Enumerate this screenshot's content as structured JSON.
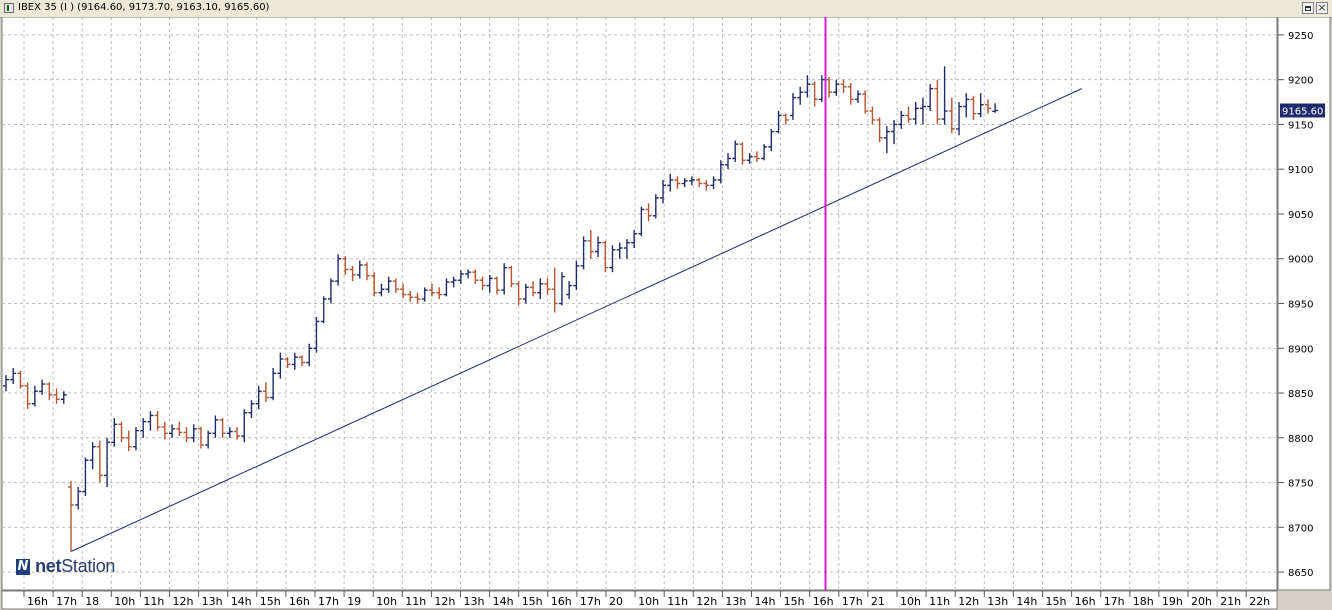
{
  "window": {
    "title": "IBEX 35 (I ) (9164.60, 9173.70, 9163.10, 9165.60)",
    "restore_icon": "restore-icon",
    "close_icon": "close-icon",
    "close_glyph": "×"
  },
  "logo": {
    "mark": "N",
    "text_bold": "net",
    "text_regular": "Station"
  },
  "chart_data": {
    "type": "ohlc",
    "title": "IBEX 35 (I )",
    "last_price_label": "9165.60",
    "last_price": 9165.6,
    "ylim": [
      8630,
      9270
    ],
    "yticks": [
      8650,
      8700,
      8750,
      8800,
      8850,
      8900,
      8950,
      9000,
      9050,
      9100,
      9150,
      9200,
      9250
    ],
    "grid": true,
    "colors": {
      "up": "#1f2a6b",
      "down": "#b5542e",
      "trendline": "#1f2a6b",
      "marker": "#d21fd2",
      "background": "#ffffff",
      "grid": "#bdbdbd",
      "price_label_bg": "#1f2a6b"
    },
    "x_labels": [
      "16h",
      "17h",
      "18",
      "10h",
      "11h",
      "12h",
      "13h",
      "14h",
      "15h",
      "16h",
      "17h",
      "19",
      "10h",
      "11h",
      "12h",
      "13h",
      "14h",
      "15h",
      "16h",
      "17h",
      "20",
      "10h",
      "11h",
      "12h",
      "13h",
      "14h",
      "15h",
      "16h",
      "17h",
      "21",
      "10h",
      "11h",
      "12h",
      "13h",
      "14h",
      "15h",
      "16h",
      "17h",
      "18h",
      "19h",
      "20h",
      "21h",
      "22h"
    ],
    "trendline": {
      "start_bar": 0,
      "start_value": 8673,
      "end_bar": 140,
      "end_value": 9190,
      "starts_at_bar": 0
    },
    "vertical_marker_after_bar": 113,
    "sessions": [
      {
        "bars": [
          {
            "o": 8858,
            "h": 8870,
            "l": 8852,
            "c": 8865
          },
          {
            "o": 8865,
            "h": 8878,
            "l": 8860,
            "c": 8872
          },
          {
            "o": 8872,
            "h": 8875,
            "l": 8855,
            "c": 8858
          },
          {
            "o": 8858,
            "h": 8862,
            "l": 8832,
            "c": 8838
          },
          {
            "o": 8838,
            "h": 8858,
            "l": 8835,
            "c": 8852
          },
          {
            "o": 8852,
            "h": 8865,
            "l": 8848,
            "c": 8860
          },
          {
            "o": 8860,
            "h": 8862,
            "l": 8842,
            "c": 8848
          },
          {
            "o": 8848,
            "h": 8855,
            "l": 8838,
            "c": 8843
          },
          {
            "o": 8843,
            "h": 8852,
            "l": 8838,
            "c": 8848
          }
        ]
      },
      {
        "bars": [
          {
            "o": 8745,
            "h": 8752,
            "l": 8673,
            "c": 8725
          },
          {
            "o": 8725,
            "h": 8745,
            "l": 8720,
            "c": 8740
          },
          {
            "o": 8740,
            "h": 8778,
            "l": 8735,
            "c": 8775
          },
          {
            "o": 8775,
            "h": 8795,
            "l": 8765,
            "c": 8790
          },
          {
            "o": 8790,
            "h": 8797,
            "l": 8750,
            "c": 8758
          },
          {
            "o": 8758,
            "h": 8800,
            "l": 8745,
            "c": 8795
          },
          {
            "o": 8795,
            "h": 8822,
            "l": 8790,
            "c": 8815
          },
          {
            "o": 8815,
            "h": 8818,
            "l": 8795,
            "c": 8800
          },
          {
            "o": 8800,
            "h": 8808,
            "l": 8785,
            "c": 8790
          },
          {
            "o": 8790,
            "h": 8812,
            "l": 8786,
            "c": 8808
          },
          {
            "o": 8808,
            "h": 8822,
            "l": 8800,
            "c": 8818
          },
          {
            "o": 8818,
            "h": 8830,
            "l": 8808,
            "c": 8825
          },
          {
            "o": 8825,
            "h": 8830,
            "l": 8808,
            "c": 8812
          },
          {
            "o": 8812,
            "h": 8818,
            "l": 8798,
            "c": 8805
          },
          {
            "o": 8805,
            "h": 8815,
            "l": 8800,
            "c": 8810
          },
          {
            "o": 8810,
            "h": 8818,
            "l": 8802,
            "c": 8806
          },
          {
            "o": 8806,
            "h": 8812,
            "l": 8795,
            "c": 8800
          },
          {
            "o": 8800,
            "h": 8815,
            "l": 8795,
            "c": 8810
          },
          {
            "o": 8810,
            "h": 8812,
            "l": 8788,
            "c": 8792
          },
          {
            "o": 8792,
            "h": 8808,
            "l": 8788,
            "c": 8805
          },
          {
            "o": 8805,
            "h": 8825,
            "l": 8800,
            "c": 8820
          },
          {
            "o": 8820,
            "h": 8822,
            "l": 8800,
            "c": 8805
          },
          {
            "o": 8805,
            "h": 8812,
            "l": 8800,
            "c": 8807
          },
          {
            "o": 8807,
            "h": 8812,
            "l": 8798,
            "c": 8802
          },
          {
            "o": 8802,
            "h": 8832,
            "l": 8795,
            "c": 8828
          },
          {
            "o": 8828,
            "h": 8842,
            "l": 8822,
            "c": 8838
          },
          {
            "o": 8838,
            "h": 8858,
            "l": 8832,
            "c": 8852
          },
          {
            "o": 8852,
            "h": 8862,
            "l": 8840,
            "c": 8845
          },
          {
            "o": 8845,
            "h": 8878,
            "l": 8842,
            "c": 8872
          },
          {
            "o": 8872,
            "h": 8895,
            "l": 8866,
            "c": 8888
          },
          {
            "o": 8888,
            "h": 8890,
            "l": 8878,
            "c": 8882
          },
          {
            "o": 8882,
            "h": 8895,
            "l": 8876,
            "c": 8890
          },
          {
            "o": 8890,
            "h": 8892,
            "l": 8880,
            "c": 8884
          },
          {
            "o": 8884,
            "h": 8905,
            "l": 8880,
            "c": 8900
          },
          {
            "o": 8900,
            "h": 8935,
            "l": 8895,
            "c": 8930
          },
          {
            "o": 8930,
            "h": 8958,
            "l": 8928,
            "c": 8955
          },
          {
            "o": 8955,
            "h": 8978,
            "l": 8950,
            "c": 8975
          },
          {
            "o": 8975,
            "h": 9005,
            "l": 8970,
            "c": 9000
          },
          {
            "o": 9000,
            "h": 9003,
            "l": 8982,
            "c": 8988
          },
          {
            "o": 8988,
            "h": 8992,
            "l": 8975,
            "c": 8982
          },
          {
            "o": 8982,
            "h": 8998,
            "l": 8978,
            "c": 8993
          },
          {
            "o": 8993,
            "h": 8996,
            "l": 8976,
            "c": 8981
          },
          {
            "o": 8981,
            "h": 8985,
            "l": 8958,
            "c": 8962
          },
          {
            "o": 8962,
            "h": 8972,
            "l": 8958,
            "c": 8966
          },
          {
            "o": 8966,
            "h": 8980,
            "l": 8962,
            "c": 8975
          },
          {
            "o": 8975,
            "h": 8978,
            "l": 8962,
            "c": 8966
          },
          {
            "o": 8966,
            "h": 8972,
            "l": 8956,
            "c": 8960
          },
          {
            "o": 8960,
            "h": 8964,
            "l": 8952,
            "c": 8957
          },
          {
            "o": 8957,
            "h": 8962,
            "l": 8950,
            "c": 8955
          },
          {
            "o": 8955,
            "h": 8968,
            "l": 8952,
            "c": 8965
          },
          {
            "o": 8965,
            "h": 8972,
            "l": 8958,
            "c": 8962
          },
          {
            "o": 8962,
            "h": 8968,
            "l": 8955,
            "c": 8960
          },
          {
            "o": 8960,
            "h": 8978,
            "l": 8958,
            "c": 8974
          },
          {
            "o": 8974,
            "h": 8980,
            "l": 8968,
            "c": 8976
          },
          {
            "o": 8976,
            "h": 8987,
            "l": 8972,
            "c": 8983
          },
          {
            "o": 8983,
            "h": 8988,
            "l": 8978,
            "c": 8985
          },
          {
            "o": 8985,
            "h": 8988,
            "l": 8972,
            "c": 8976
          },
          {
            "o": 8976,
            "h": 8980,
            "l": 8965,
            "c": 8970
          },
          {
            "o": 8970,
            "h": 8982,
            "l": 8962,
            "c": 8978
          },
          {
            "o": 8978,
            "h": 8980,
            "l": 8960,
            "c": 8965
          },
          {
            "o": 8965,
            "h": 8995,
            "l": 8960,
            "c": 8990
          },
          {
            "o": 8990,
            "h": 8992,
            "l": 8968,
            "c": 8972
          },
          {
            "o": 8972,
            "h": 8975,
            "l": 8948,
            "c": 8955
          },
          {
            "o": 8955,
            "h": 8972,
            "l": 8950,
            "c": 8968
          },
          {
            "o": 8968,
            "h": 8975,
            "l": 8958,
            "c": 8962
          },
          {
            "o": 8962,
            "h": 8978,
            "l": 8955,
            "c": 8972
          },
          {
            "o": 8972,
            "h": 8978,
            "l": 8960,
            "c": 8966
          },
          {
            "o": 8966,
            "h": 8990,
            "l": 8940,
            "c": 8950
          },
          {
            "o": 8950,
            "h": 8985,
            "l": 8948,
            "c": 8980
          }
        ]
      },
      {
        "bars": [
          {
            "o": 8960,
            "h": 8975,
            "l": 8955,
            "c": 8970
          },
          {
            "o": 8970,
            "h": 8998,
            "l": 8965,
            "c": 8992
          },
          {
            "o": 8992,
            "h": 9025,
            "l": 8988,
            "c": 9020
          },
          {
            "o": 9020,
            "h": 9032,
            "l": 9000,
            "c": 9008
          },
          {
            "o": 9008,
            "h": 9025,
            "l": 9002,
            "c": 9018
          },
          {
            "o": 9018,
            "h": 9020,
            "l": 8985,
            "c": 8990
          },
          {
            "o": 8990,
            "h": 9015,
            "l": 8985,
            "c": 9010
          },
          {
            "o": 9010,
            "h": 9018,
            "l": 9000,
            "c": 9012
          },
          {
            "o": 9012,
            "h": 9022,
            "l": 9000,
            "c": 9018
          },
          {
            "o": 9018,
            "h": 9032,
            "l": 9012,
            "c": 9028
          },
          {
            "o": 9028,
            "h": 9058,
            "l": 9025,
            "c": 9055
          },
          {
            "o": 9055,
            "h": 9062,
            "l": 9042,
            "c": 9048
          },
          {
            "o": 9048,
            "h": 9072,
            "l": 9045,
            "c": 9068
          },
          {
            "o": 9068,
            "h": 9088,
            "l": 9062,
            "c": 9082
          },
          {
            "o": 9082,
            "h": 9095,
            "l": 9075,
            "c": 9088
          },
          {
            "o": 9088,
            "h": 9092,
            "l": 9078,
            "c": 9084
          },
          {
            "o": 9084,
            "h": 9090,
            "l": 9080,
            "c": 9087
          },
          {
            "o": 9087,
            "h": 9092,
            "l": 9082,
            "c": 9088
          },
          {
            "o": 9088,
            "h": 9090,
            "l": 9080,
            "c": 9084
          },
          {
            "o": 9084,
            "h": 9088,
            "l": 9076,
            "c": 9082
          },
          {
            "o": 9082,
            "h": 9092,
            "l": 9078,
            "c": 9088
          },
          {
            "o": 9088,
            "h": 9110,
            "l": 9084,
            "c": 9105
          },
          {
            "o": 9105,
            "h": 9118,
            "l": 9100,
            "c": 9112
          },
          {
            "o": 9112,
            "h": 9132,
            "l": 9108,
            "c": 9128
          },
          {
            "o": 9128,
            "h": 9130,
            "l": 9105,
            "c": 9110
          },
          {
            "o": 9110,
            "h": 9118,
            "l": 9106,
            "c": 9114
          },
          {
            "o": 9114,
            "h": 9120,
            "l": 9108,
            "c": 9112
          },
          {
            "o": 9112,
            "h": 9128,
            "l": 9110,
            "c": 9125
          },
          {
            "o": 9125,
            "h": 9145,
            "l": 9120,
            "c": 9142
          },
          {
            "o": 9142,
            "h": 9165,
            "l": 9140,
            "c": 9160
          },
          {
            "o": 9160,
            "h": 9162,
            "l": 9150,
            "c": 9155
          }
        ]
      },
      {
        "bars": [
          {
            "o": 9160,
            "h": 9185,
            "l": 9155,
            "c": 9180
          },
          {
            "o": 9180,
            "h": 9192,
            "l": 9172,
            "c": 9186
          },
          {
            "o": 9186,
            "h": 9205,
            "l": 9180,
            "c": 9195
          },
          {
            "o": 9195,
            "h": 9198,
            "l": 9170,
            "c": 9178
          },
          {
            "o": 9178,
            "h": 9205,
            "l": 9175,
            "c": 9200
          },
          {
            "o": 9200,
            "h": 9203,
            "l": 9180,
            "c": 9186
          },
          {
            "o": 9186,
            "h": 9200,
            "l": 9182,
            "c": 9195
          },
          {
            "o": 9195,
            "h": 9200,
            "l": 9185,
            "c": 9192
          },
          {
            "o": 9192,
            "h": 9196,
            "l": 9172,
            "c": 9178
          },
          {
            "o": 9178,
            "h": 9188,
            "l": 9174,
            "c": 9184
          },
          {
            "o": 9184,
            "h": 9188,
            "l": 9162,
            "c": 9165
          },
          {
            "o": 9165,
            "h": 9170,
            "l": 9150,
            "c": 9155
          },
          {
            "o": 9155,
            "h": 9158,
            "l": 9130,
            "c": 9135
          },
          {
            "o": 9135,
            "h": 9148,
            "l": 9118,
            "c": 9142
          },
          {
            "o": 9142,
            "h": 9155,
            "l": 9128,
            "c": 9150
          },
          {
            "o": 9150,
            "h": 9165,
            "l": 9145,
            "c": 9160
          },
          {
            "o": 9160,
            "h": 9170,
            "l": 9152,
            "c": 9156
          },
          {
            "o": 9156,
            "h": 9175,
            "l": 9150,
            "c": 9168
          },
          {
            "o": 9168,
            "h": 9180,
            "l": 9150,
            "c": 9170
          },
          {
            "o": 9170,
            "h": 9195,
            "l": 9165,
            "c": 9190
          },
          {
            "o": 9190,
            "h": 9200,
            "l": 9150,
            "c": 9156
          },
          {
            "o": 9156,
            "h": 9215,
            "l": 9150,
            "c": 9165
          },
          {
            "o": 9165,
            "h": 9180,
            "l": 9140,
            "c": 9145
          },
          {
            "o": 9145,
            "h": 9175,
            "l": 9138,
            "c": 9170
          },
          {
            "o": 9170,
            "h": 9185,
            "l": 9158,
            "c": 9178
          },
          {
            "o": 9178,
            "h": 9182,
            "l": 9155,
            "c": 9162
          },
          {
            "o": 9162,
            "h": 9185,
            "l": 9158,
            "c": 9172
          },
          {
            "o": 9172,
            "h": 9178,
            "l": 9162,
            "c": 9168
          },
          {
            "o": 9164.6,
            "h": 9173.7,
            "l": 9163.1,
            "c": 9165.6
          }
        ]
      }
    ]
  }
}
